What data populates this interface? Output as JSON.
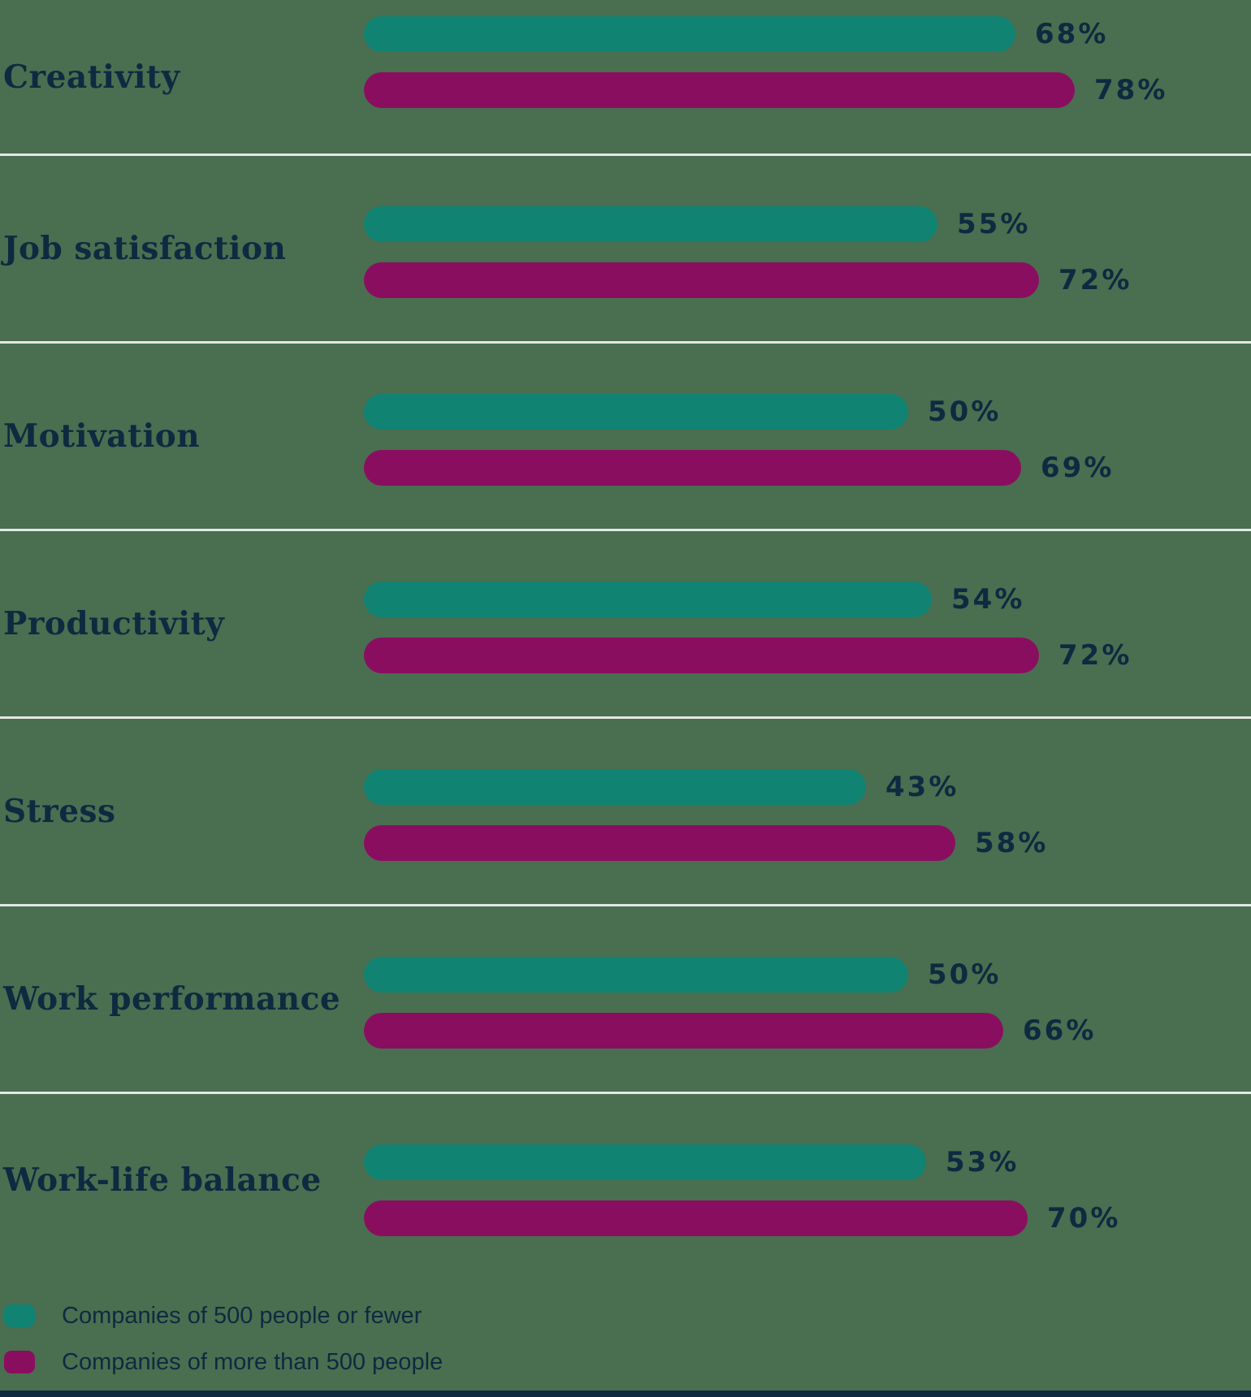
{
  "chart_data": {
    "type": "bar",
    "orientation": "horizontal",
    "title": "",
    "value_format": "percent",
    "grid": "light row separator lines between categories",
    "legend_position": "bottom-left",
    "categories": [
      "Creativity",
      "Job satisfaction",
      "Motivation",
      "Productivity",
      "Stress",
      "Work performance",
      "Work-life balance"
    ],
    "series": [
      {
        "name": "Companies of 500 people or fewer",
        "color": "#108372",
        "values": [
          68,
          55,
          50,
          54,
          43,
          50,
          53
        ]
      },
      {
        "name": "Companies of more than 500 people",
        "color": "#8A0E5F",
        "values": [
          78,
          72,
          69,
          72,
          58,
          66,
          70
        ]
      }
    ],
    "value_labels": [
      [
        "68%",
        "78%"
      ],
      [
        "55%",
        "72%"
      ],
      [
        "50%",
        "69%"
      ],
      [
        "54%",
        "72%"
      ],
      [
        "43%",
        "58%"
      ],
      [
        "50%",
        "66%"
      ],
      [
        "53%",
        "70%"
      ]
    ]
  },
  "legend": {
    "items": [
      {
        "label": "Companies of 500 people or fewer",
        "color": "#108372"
      },
      {
        "label": "Companies of more than 500 people",
        "color": "#8A0E5F"
      }
    ]
  },
  "colors": {
    "background": "#4A6E50",
    "text": "#0E2A40",
    "separator": "#E3E8E2",
    "bar_small_companies": "#108372",
    "bar_large_companies": "#8A0E5F",
    "bottom_accent": "#0E2A40"
  }
}
